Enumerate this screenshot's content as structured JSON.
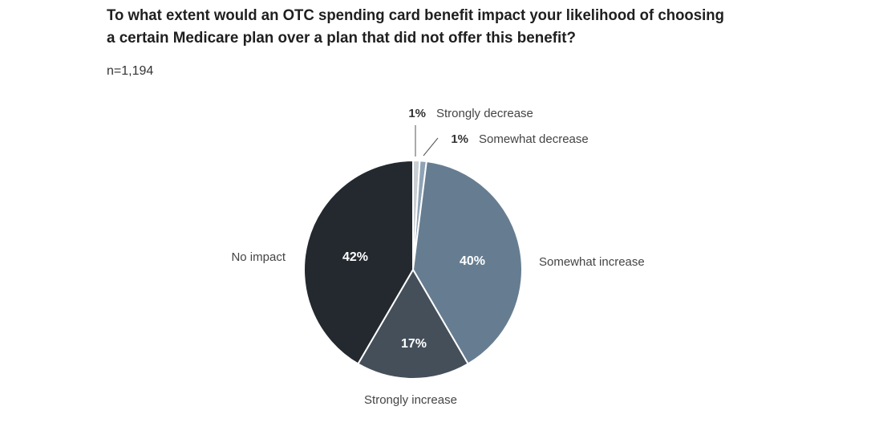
{
  "chart_data": {
    "type": "pie",
    "title": [
      "To what extent would an OTC spending card benefit impact your likelihood of choosing",
      "a certain Medicare plan over a plan that did not offer this benefit?"
    ],
    "subtitle": "n=1,194",
    "categories": [
      "Strongly decrease",
      "Somewhat decrease",
      "Somewhat increase",
      "Strongly increase",
      "No impact"
    ],
    "values": [
      1,
      1,
      40,
      17,
      42
    ],
    "value_labels": [
      "1%",
      "1%",
      "40%",
      "17%",
      "42%"
    ],
    "colors": [
      "#c9ced3",
      "#8ea3b5",
      "#667d91",
      "#454f5a",
      "#23292f"
    ]
  }
}
